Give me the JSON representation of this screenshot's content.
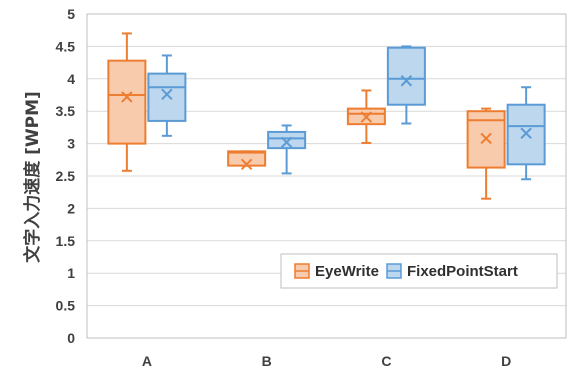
{
  "chart_data": {
    "type": "box",
    "ylabel": "文字入力速度 [WPM]",
    "xlabel": "",
    "title": "",
    "ylim": [
      0,
      5
    ],
    "yticks": [
      "0",
      "0.5",
      "1",
      "1.5",
      "2",
      "2.5",
      "3",
      "3.5",
      "4",
      "4.5",
      "5"
    ],
    "categories": [
      "A",
      "B",
      "C",
      "D"
    ],
    "grid": "horizontal",
    "legend_position": "bottom-right",
    "series": [
      {
        "name": "EyeWrite",
        "color": "#ED7D31",
        "fill": "#F8CBAD",
        "boxes": [
          {
            "min": 2.58,
            "q1": 3.0,
            "median": 3.75,
            "q3": 4.28,
            "max": 4.7,
            "mean": 3.72
          },
          {
            "min": 2.66,
            "q1": 2.66,
            "median": 2.86,
            "q3": 2.88,
            "max": 2.88,
            "mean": 2.68
          },
          {
            "min": 3.01,
            "q1": 3.3,
            "median": 3.46,
            "q3": 3.54,
            "max": 3.82,
            "mean": 3.41
          },
          {
            "min": 2.15,
            "q1": 2.63,
            "median": 3.36,
            "q3": 3.5,
            "max": 3.54,
            "mean": 3.08
          }
        ]
      },
      {
        "name": "FixedPointStart",
        "color": "#5B9BD5",
        "fill": "#BDD7EE",
        "boxes": [
          {
            "min": 3.12,
            "q1": 3.35,
            "median": 3.87,
            "q3": 4.08,
            "max": 4.36,
            "mean": 3.76
          },
          {
            "min": 2.54,
            "q1": 2.93,
            "median": 3.08,
            "q3": 3.18,
            "max": 3.28,
            "mean": 3.02
          },
          {
            "min": 3.31,
            "q1": 3.6,
            "median": 4.0,
            "q3": 4.48,
            "max": 4.5,
            "mean": 3.97
          },
          {
            "min": 2.45,
            "q1": 2.68,
            "median": 3.27,
            "q3": 3.6,
            "max": 3.87,
            "mean": 3.16
          }
        ]
      }
    ]
  }
}
